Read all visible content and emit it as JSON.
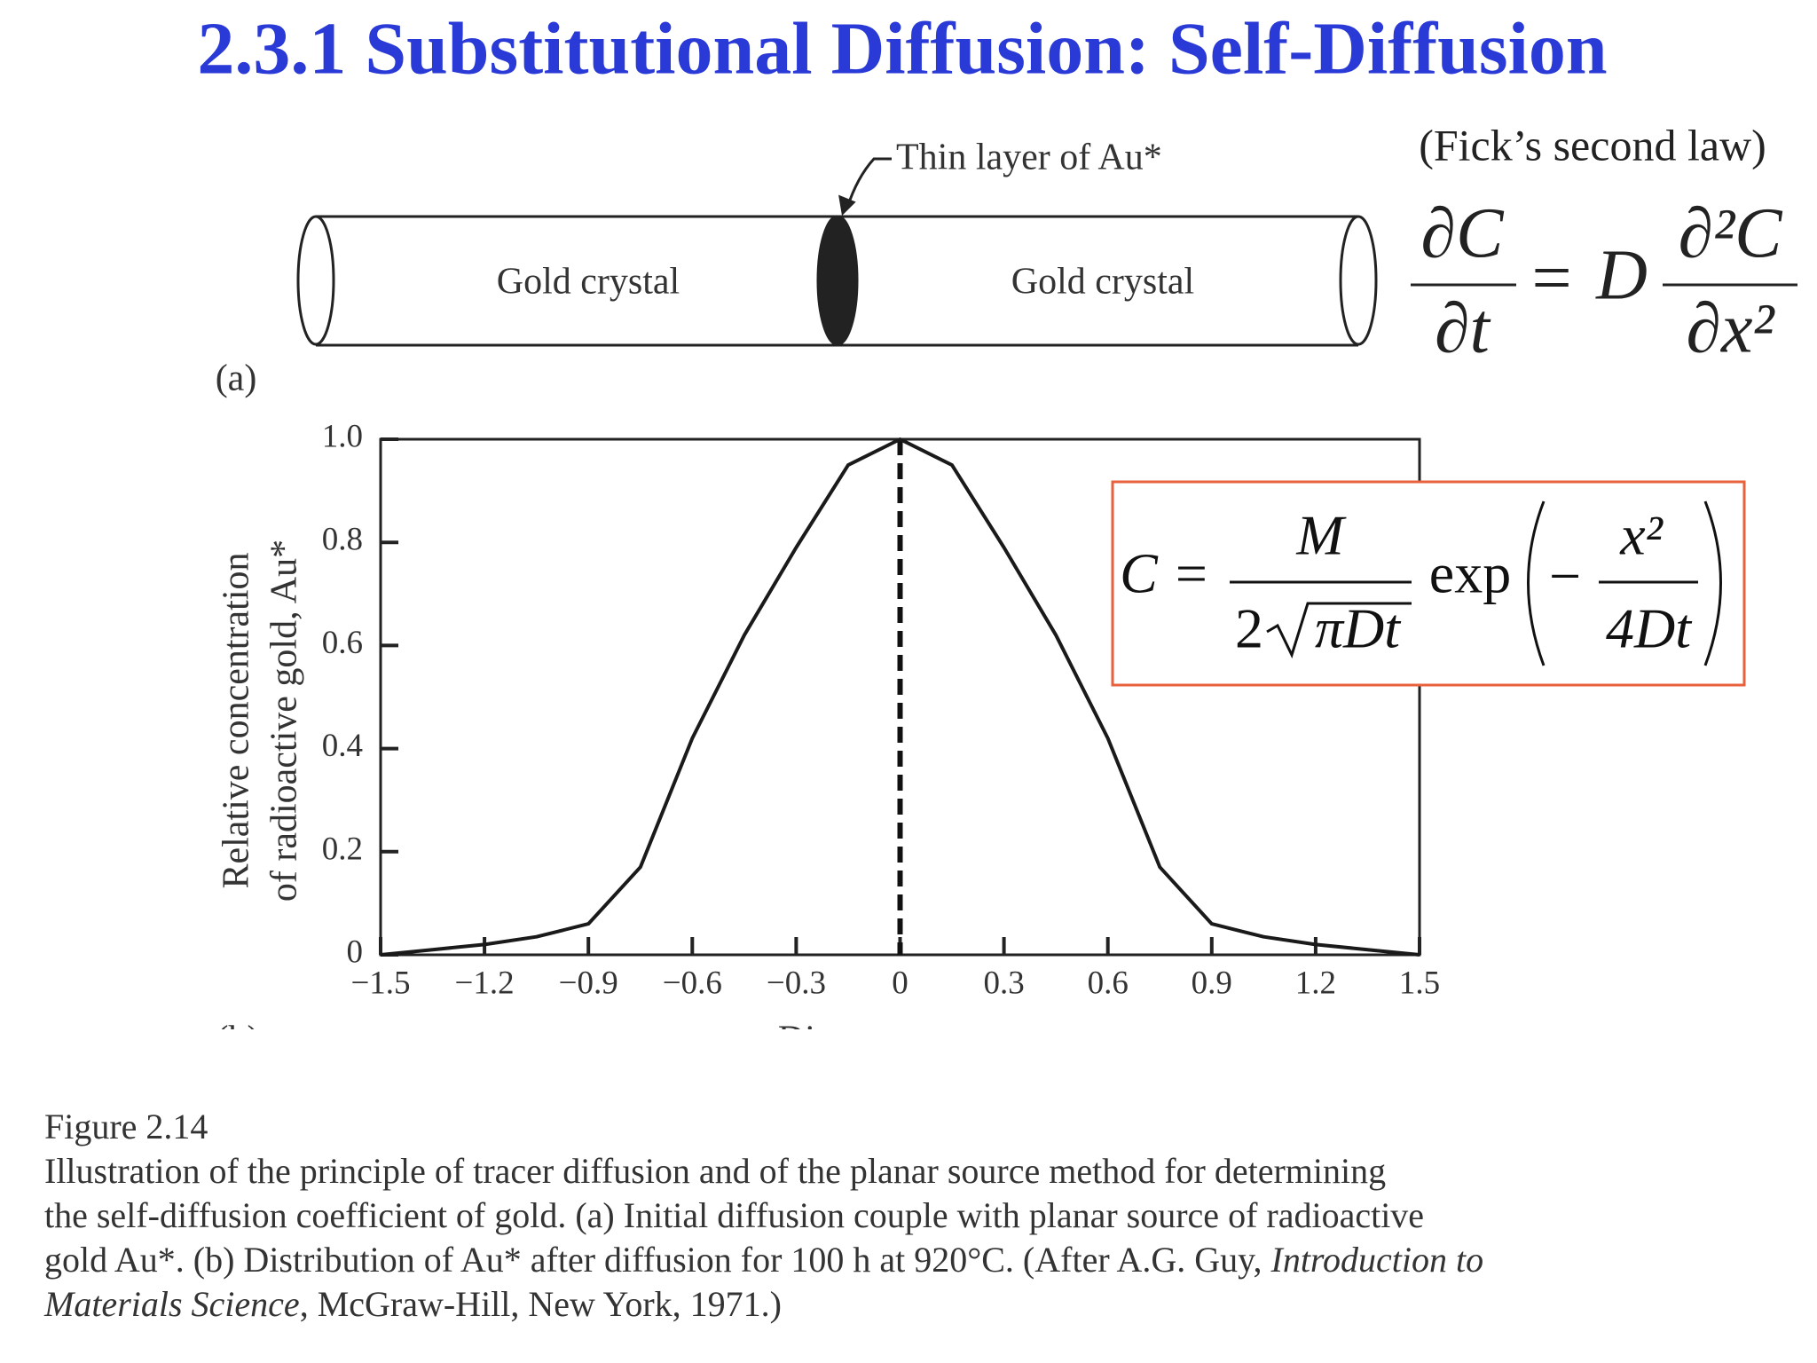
{
  "header": {
    "title": "2.3.1 Substitutional Diffusion: Self-Diffusion"
  },
  "diagram": {
    "left_label": "Gold crystal",
    "right_label": "Gold crystal",
    "layer_label": "Thin layer of Au*",
    "panel_label": "(a)"
  },
  "fick": {
    "title": "(Fick’s second law)",
    "lhs_num": "∂C",
    "lhs_den": "∂t",
    "equals": "=",
    "coef": "D",
    "rhs_num": "∂²C",
    "rhs_den": "∂x²"
  },
  "formula": {
    "lhs": "C =",
    "num": "M",
    "den_factor": "2",
    "den_root": "πDt",
    "func": "exp",
    "sign": "−",
    "arg_num": "x²",
    "arg_den": "4Dt"
  },
  "chart_data": {
    "type": "line",
    "panel_label": "(b)",
    "x_label": "Distance, x, mm",
    "y_label": [
      "Relative concentration",
      "of radioactive gold, Au*"
    ],
    "x": [
      -1.5,
      -1.35,
      -1.2,
      -1.05,
      -0.9,
      -0.75,
      -0.6,
      -0.45,
      -0.3,
      -0.15,
      0,
      0.15,
      0.3,
      0.45,
      0.6,
      0.75,
      0.9,
      1.05,
      1.2,
      1.35,
      1.5
    ],
    "values": [
      0,
      0.01,
      0.02,
      0.035,
      0.06,
      0.17,
      0.42,
      0.62,
      0.79,
      0.95,
      1.0,
      0.95,
      0.79,
      0.62,
      0.42,
      0.17,
      0.06,
      0.035,
      0.02,
      0.01,
      0
    ],
    "color": "#1a1a1a",
    "reference_line": 0,
    "xlim": [
      -1.5,
      1.5
    ],
    "ylim": [
      0,
      1
    ],
    "xticks": [
      {
        "value": -1.5,
        "label": "−1.5"
      },
      {
        "value": -1.2,
        "label": "−1.2"
      },
      {
        "value": -0.9,
        "label": "−0.9"
      },
      {
        "value": -0.6,
        "label": "−0.6"
      },
      {
        "value": -0.3,
        "label": "−0.3"
      },
      0,
      0.3,
      0.6,
      0.9,
      1.2,
      1.5
    ],
    "yticks": [
      0,
      0.2,
      0.4,
      0.6,
      0.8,
      {
        "value": 1,
        "label": "1.0"
      }
    ],
    "grid": false
  },
  "caption": {
    "figure": "Figure 2.14",
    "lines": [
      "Illustration of the principle of tracer diffusion and of the planar source method for determining",
      "the self-diffusion coefficient of gold. (a) Initial diffusion couple with planar source of radioactive",
      [
        "gold Au*. (b) Distribution of Au* after diffusion for 100 h at 920°C. (After A.G. Guy, ",
        "Introduction to"
      ],
      [
        "Materials Science",
        ", McGraw-Hill, New York, 1971.)"
      ]
    ]
  }
}
